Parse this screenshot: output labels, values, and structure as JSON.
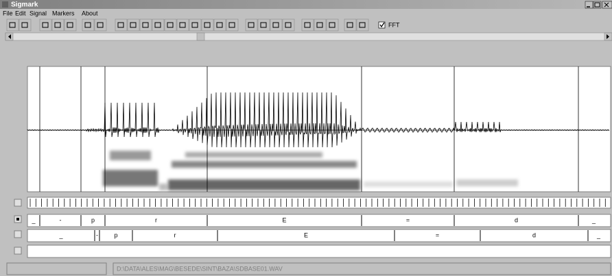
{
  "window": {
    "title": "Sigmark"
  },
  "menu": [
    "File",
    "Edit",
    "Signal",
    "Markers",
    "About"
  ],
  "toolbar": {
    "fft_label": "FFT",
    "fft_checked": true
  },
  "tiers": [
    {
      "labels": [
        "_",
        "-",
        "p",
        "r",
        "E",
        "=",
        "d",
        "_"
      ]
    },
    {
      "labels": [
        "_",
        "-",
        "p",
        "r",
        "E",
        "=",
        "d",
        "_"
      ]
    }
  ],
  "status": {
    "path": "D:\\DATA\\ALES\\MAG\\BESEDE\\SINT\\BAZA\\SDBASE01.WAV"
  }
}
